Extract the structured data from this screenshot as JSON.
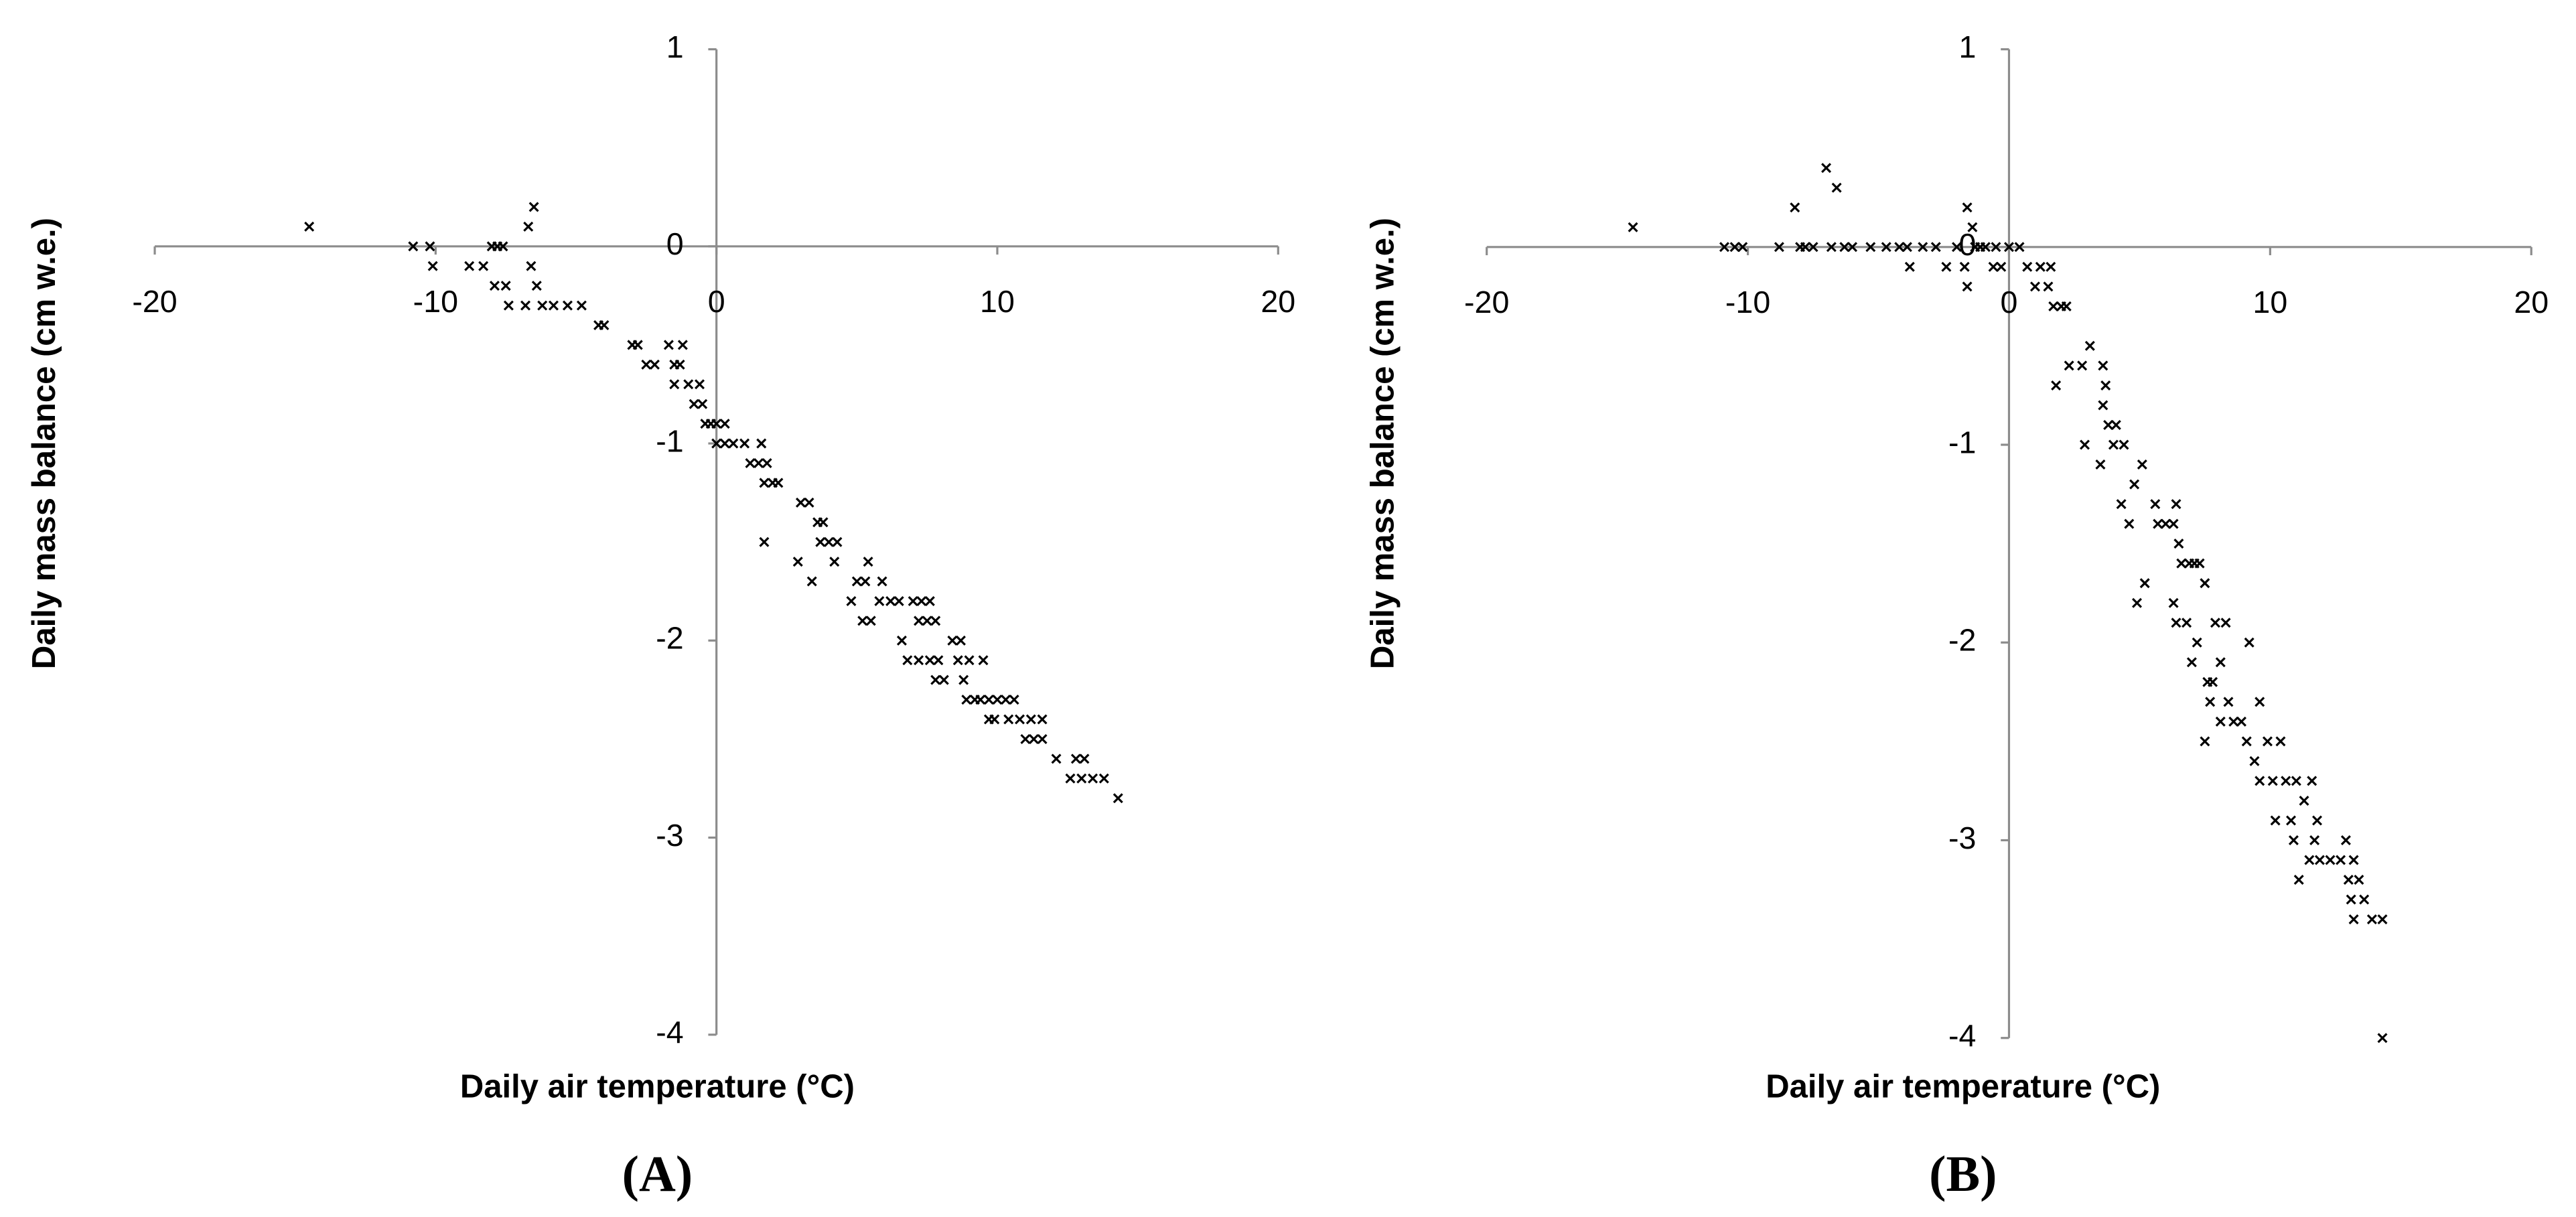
{
  "chart_data": [
    {
      "type": "scatter",
      "x_label": "Daily air temperature (°C)",
      "y_label": "Daily mass balance (cm w.e.)",
      "caption": "(A)",
      "color": "#000000",
      "marker": "x",
      "xlim": [
        -20,
        20
      ],
      "ylim": [
        -4,
        1
      ],
      "xticks": [
        -20,
        -10,
        0,
        10,
        20
      ],
      "yticks": [
        -4,
        -3,
        -2,
        -1,
        0,
        1
      ],
      "x": [
        -14.5,
        -10.8,
        -10.2,
        -10.1,
        -8.8,
        -8.3,
        -8,
        -7.8,
        -7.6,
        -7.9,
        -7.5,
        -7.4,
        -6.8,
        -6.7,
        -6.6,
        -6.5,
        -6.4,
        -6.2,
        -5.8,
        -5.3,
        -4.8,
        -4.2,
        -4,
        -3,
        -2.8,
        -2.5,
        -2.2,
        -1.7,
        -1.5,
        -1.3,
        -1.2,
        -1.5,
        -1,
        -0.8,
        -0.6,
        -0.5,
        -0.4,
        -0.2,
        0,
        0.3,
        0,
        0.3,
        0.6,
        1,
        1.2,
        1.5,
        1.6,
        1.8,
        1.7,
        2,
        2.2,
        1.7,
        3,
        3.3,
        3.6,
        3.8,
        3.7,
        4,
        4.3,
        3.4,
        2.9,
        4.2,
        4.8,
        5,
        5.3,
        5.4,
        5.9,
        5.5,
        5.2,
        5.8,
        6.2,
        6.5,
        7,
        7.3,
        7.6,
        6.6,
        6.8,
        7.2,
        7.5,
        7.8,
        7.2,
        7.6,
        7.9,
        7.8,
        8.1,
        8.4,
        8.7,
        8.6,
        8.8,
        8.9,
        9.2,
        9.4,
        9.7,
        9,
        9.5,
        9.7,
        9.9,
        10,
        10.3,
        10.6,
        10.4,
        10.8,
        11.2,
        11,
        11.3,
        11.6,
        11.6,
        12.1,
        12.6,
        12.8,
        13.1,
        13,
        13.4,
        13.8,
        14.3
      ],
      "y": [
        0.1,
        0,
        0,
        -0.1,
        -0.1,
        -0.1,
        0,
        0,
        0,
        -0.2,
        -0.2,
        -0.3,
        -0.3,
        0.1,
        -0.1,
        0.2,
        -0.2,
        -0.3,
        -0.3,
        -0.3,
        -0.3,
        -0.4,
        -0.4,
        -0.5,
        -0.5,
        -0.6,
        -0.6,
        -0.5,
        -0.6,
        -0.6,
        -0.5,
        -0.7,
        -0.7,
        -0.8,
        -0.7,
        -0.8,
        -0.9,
        -0.9,
        -0.9,
        -0.9,
        -1,
        -1,
        -1,
        -1,
        -1.1,
        -1.1,
        -1,
        -1.1,
        -1.2,
        -1.2,
        -1.2,
        -1.5,
        -1.3,
        -1.3,
        -1.4,
        -1.4,
        -1.5,
        -1.5,
        -1.5,
        -1.7,
        -1.6,
        -1.6,
        -1.8,
        -1.7,
        -1.7,
        -1.6,
        -1.7,
        -1.9,
        -1.9,
        -1.8,
        -1.8,
        -1.8,
        -1.8,
        -1.8,
        -1.8,
        -2,
        -2.1,
        -1.9,
        -1.9,
        -1.9,
        -2.1,
        -2.1,
        -2.1,
        -2.2,
        -2.2,
        -2,
        -2,
        -2.1,
        -2.2,
        -2.3,
        -2.3,
        -2.3,
        -2.3,
        -2.1,
        -2.1,
        -2.4,
        -2.4,
        -2.3,
        -2.3,
        -2.3,
        -2.4,
        -2.4,
        -2.4,
        -2.5,
        -2.5,
        -2.5,
        -2.4,
        -2.6,
        -2.7,
        -2.6,
        -2.6,
        -2.7,
        -2.7,
        -2.7,
        -2.8
      ]
    },
    {
      "type": "scatter",
      "x_label": "Daily air temperature (°C)",
      "y_label": "Daily mass balance (cm w.e.)",
      "caption": "(B)",
      "color": "#000000",
      "marker": "x",
      "xlim": [
        -20,
        20
      ],
      "ylim": [
        -4,
        1
      ],
      "xticks": [
        -20,
        -10,
        0,
        10,
        20
      ],
      "yticks": [
        -4,
        -3,
        -2,
        -1,
        0,
        1
      ],
      "x": [
        -14.4,
        -10.9,
        -10.5,
        -10.2,
        -8.8,
        -8.2,
        -8,
        -7.8,
        -7.5,
        -7,
        -6.8,
        -6.6,
        -6.3,
        -6,
        -5.3,
        -4.7,
        -4.2,
        -3.9,
        -3.8,
        -3.3,
        -2.8,
        -2.4,
        -2,
        -1.7,
        -1.6,
        -1.3,
        -1.6,
        -1.4,
        -1.1,
        -0.9,
        -0.6,
        -0.5,
        -0.3,
        0,
        0.4,
        0.7,
        1,
        1.2,
        1.5,
        1.6,
        1.7,
        2,
        2.2,
        1.8,
        2.3,
        2.8,
        3.1,
        3.6,
        3.7,
        3.6,
        3.8,
        2.9,
        3.5,
        4,
        4.1,
        4.4,
        4.3,
        4.6,
        4.8,
        5.1,
        4.9,
        5.2,
        5.6,
        5.7,
        6,
        6.3,
        6.4,
        6.5,
        6.6,
        6.3,
        6.4,
        6.8,
        6.9,
        7.1,
        7.3,
        7,
        7.2,
        7.5,
        7.9,
        8.3,
        7.6,
        7.8,
        8.1,
        7.5,
        7.7,
        8.4,
        8.6,
        8.9,
        8.1,
        9.2,
        9.1,
        9.4,
        9.6,
        9.6,
        9.9,
        10.1,
        10.2,
        10.4,
        10.6,
        10.8,
        10.9,
        11,
        11.1,
        11.3,
        11.5,
        11.6,
        11.7,
        11.8,
        11.9,
        12.3,
        12.7,
        12.9,
        13,
        13.1,
        13.2,
        13.4,
        13.6,
        13.9,
        13.2,
        14.3,
        14.3
      ],
      "y": [
        0.1,
        0,
        0,
        0,
        0,
        0.2,
        0,
        0,
        0,
        0.4,
        0,
        0.3,
        0,
        0,
        0,
        0,
        0,
        0,
        -0.1,
        0,
        0,
        -0.1,
        0,
        -0.1,
        -0.2,
        0,
        0.2,
        0.1,
        0,
        0,
        -0.1,
        0,
        -0.1,
        0,
        0,
        -0.1,
        -0.2,
        -0.1,
        -0.2,
        -0.1,
        -0.3,
        -0.3,
        -0.3,
        -0.7,
        -0.6,
        -0.6,
        -0.5,
        -0.6,
        -0.7,
        -0.8,
        -0.9,
        -1,
        -1.1,
        -1,
        -0.9,
        -1,
        -1.3,
        -1.4,
        -1.2,
        -1.1,
        -1.8,
        -1.7,
        -1.3,
        -1.4,
        -1.4,
        -1.4,
        -1.3,
        -1.5,
        -1.6,
        -1.8,
        -1.9,
        -1.9,
        -1.6,
        -1.6,
        -1.6,
        -2.1,
        -2,
        -1.7,
        -1.9,
        -1.9,
        -2.2,
        -2.2,
        -2.1,
        -2.5,
        -2.3,
        -2.3,
        -2.4,
        -2.4,
        -2.4,
        -2,
        -2.5,
        -2.6,
        -2.3,
        -2.7,
        -2.5,
        -2.7,
        -2.9,
        -2.5,
        -2.7,
        -2.9,
        -3,
        -2.7,
        -3.2,
        -2.8,
        -3.1,
        -2.7,
        -3,
        -2.9,
        -3.1,
        -3.1,
        -3.1,
        -3,
        -3.2,
        -3.3,
        -3.1,
        -3.2,
        -3.3,
        -3.4,
        -3.4,
        -3.4,
        -4
      ]
    }
  ]
}
